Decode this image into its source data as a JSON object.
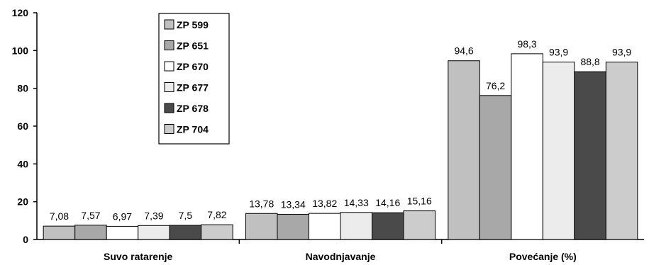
{
  "chart_data": {
    "type": "bar",
    "categories": [
      "Suvo ratarenje",
      "Navodnjavanje",
      "Povećanje (%)"
    ],
    "ylim": [
      0,
      120
    ],
    "yticks": [
      0,
      20,
      40,
      60,
      80,
      100,
      120
    ],
    "grid": false,
    "legend_position": "top-left inside plot",
    "series": [
      {
        "name": "ZP 599",
        "color": "#c0c0c0",
        "values": [
          7.08,
          13.78,
          94.6
        ],
        "labels": [
          "7,08",
          "13,78",
          "94,6"
        ]
      },
      {
        "name": "ZP 651",
        "color": "#a8a8a8",
        "values": [
          7.57,
          13.34,
          76.2
        ],
        "labels": [
          "7,57",
          "13,34",
          "76,2"
        ]
      },
      {
        "name": "ZP 670",
        "color": "#ffffff",
        "values": [
          6.97,
          13.82,
          98.3
        ],
        "labels": [
          "6,97",
          "13,82",
          "98,3"
        ]
      },
      {
        "name": "ZP 677",
        "color": "#ececec",
        "values": [
          7.39,
          14.33,
          93.9
        ],
        "labels": [
          "7,39",
          "14,33",
          "93,9"
        ]
      },
      {
        "name": "ZP 678",
        "color": "#4a4a4a",
        "values": [
          7.5,
          14.16,
          88.8
        ],
        "labels": [
          "7,5",
          "14,16",
          "88,8"
        ]
      },
      {
        "name": "ZP 704",
        "color": "#cccccc",
        "values": [
          7.82,
          15.16,
          93.9
        ],
        "labels": [
          "7,82",
          "15,16",
          "93,9"
        ]
      }
    ]
  }
}
